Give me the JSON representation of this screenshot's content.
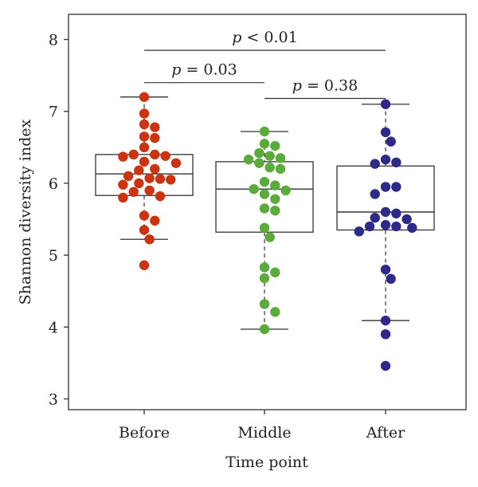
{
  "chart_data": {
    "type": "box",
    "xlabel": "Time point",
    "ylabel": "Shannon diversity index",
    "ylim": [
      2.85,
      8.35
    ],
    "yticks": [
      3,
      4,
      5,
      6,
      7,
      8
    ],
    "categories": [
      "Before",
      "Middle",
      "After"
    ],
    "grid": false,
    "series": [
      {
        "category": "Before",
        "color": "#cc3311",
        "box": {
          "whisker_low": 5.22,
          "q1": 5.83,
          "median": 6.13,
          "q3": 6.4,
          "whisker_high": 7.2
        },
        "points": [
          7.2,
          6.97,
          6.82,
          6.78,
          6.65,
          6.63,
          6.5,
          6.4,
          6.4,
          6.38,
          6.37,
          6.3,
          6.28,
          6.2,
          6.18,
          6.1,
          6.07,
          6.06,
          6.05,
          6.0,
          5.98,
          5.9,
          5.88,
          5.82,
          5.8,
          5.55,
          5.48,
          5.35,
          5.22,
          4.86
        ]
      },
      {
        "category": "Middle",
        "color": "#5aab3c",
        "box": {
          "whisker_low": 3.97,
          "q1": 5.32,
          "median": 5.92,
          "q3": 6.3,
          "whisker_high": 6.72
        },
        "points": [
          6.72,
          6.55,
          6.52,
          6.42,
          6.38,
          6.35,
          6.33,
          6.28,
          6.22,
          6.2,
          6.02,
          5.97,
          5.92,
          5.9,
          5.85,
          5.78,
          5.65,
          5.62,
          5.38,
          5.25,
          4.83,
          4.76,
          4.68,
          4.32,
          4.21,
          3.97
        ]
      },
      {
        "category": "After",
        "color": "#2e2a88",
        "box": {
          "whisker_low": 4.09,
          "q1": 5.35,
          "median": 5.6,
          "q3": 6.24,
          "whisker_high": 7.1
        },
        "points": [
          7.1,
          6.71,
          6.58,
          6.33,
          6.29,
          6.27,
          5.95,
          5.95,
          5.85,
          5.6,
          5.58,
          5.52,
          5.5,
          5.42,
          5.4,
          5.4,
          5.38,
          5.33,
          4.8,
          4.67,
          4.09,
          3.9,
          3.46
        ]
      }
    ],
    "annotations": [
      {
        "from": "Before",
        "to": "After",
        "y": 7.85,
        "text": "p < 0.01",
        "label_prefix": "p",
        "label_rest": " < 0.01"
      },
      {
        "from": "Before",
        "to": "Middle",
        "y": 7.4,
        "text": "p = 0.03",
        "label_prefix": "p",
        "label_rest": " = 0.03"
      },
      {
        "from": "Middle",
        "to": "After",
        "y": 7.18,
        "text": "p = 0.38",
        "label_prefix": "p",
        "label_rest": " = 0.38"
      }
    ]
  }
}
